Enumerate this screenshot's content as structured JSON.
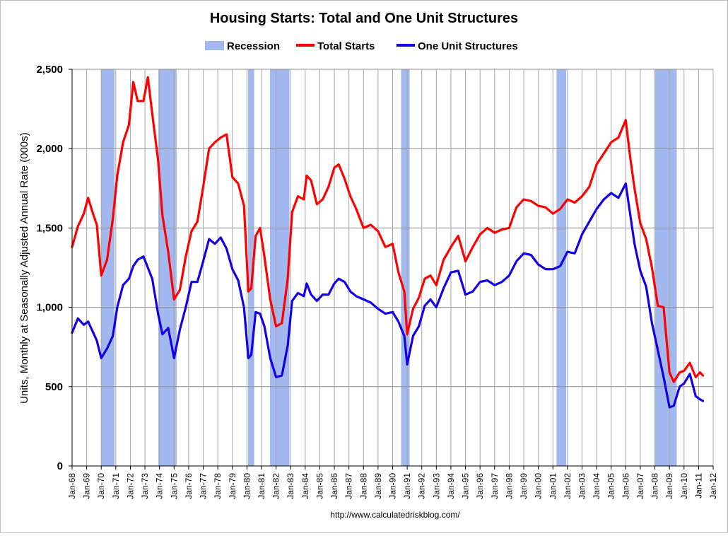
{
  "chart_data": {
    "type": "line",
    "title": "Housing Starts: Total and One Unit Structures",
    "ylabel": "Units, Monthly at Seasonally Adjusted Annual Rate (000s)",
    "xlabel": "",
    "source": "http://www.calculatedriskblog.com/",
    "xlim": [
      1968.0,
      2012.0
    ],
    "ylim": [
      0,
      2500
    ],
    "yticks": [
      0,
      500,
      1000,
      1500,
      2000,
      2500
    ],
    "ytick_labels": [
      "0",
      "500",
      "1,000",
      "1,500",
      "2,000",
      "2,500"
    ],
    "xtick_labels": [
      "Jan-68",
      "Jan-69",
      "Jan-70",
      "Jan-71",
      "Jan-72",
      "Jan-73",
      "Jan-74",
      "Jan-75",
      "Jan-76",
      "Jan-77",
      "Jan-78",
      "Jan-79",
      "Jan-80",
      "Jan-81",
      "Jan-82",
      "Jan-83",
      "Jan-84",
      "Jan-85",
      "Jan-86",
      "Jan-87",
      "Jan-88",
      "Jan-89",
      "Jan-90",
      "Jan-91",
      "Jan-92",
      "Jan-93",
      "Jan-94",
      "Jan-95",
      "Jan-96",
      "Jan-97",
      "Jan-98",
      "Jan-99",
      "Jan-00",
      "Jan-01",
      "Jan-02",
      "Jan-03",
      "Jan-04",
      "Jan-05",
      "Jan-06",
      "Jan-07",
      "Jan-08",
      "Jan-09",
      "Jan-10",
      "Jan-11",
      "Jan-12"
    ],
    "grid": true,
    "legend": {
      "position": "top",
      "entries": [
        "Recession",
        "Total Starts",
        "One Unit Structures"
      ]
    },
    "recessions": [
      {
        "name": "Recession",
        "start": 1970.0,
        "end": 1970.92
      },
      {
        "name": "Recession",
        "start": 1973.92,
        "end": 1975.17
      },
      {
        "name": "Recession",
        "start": 1980.08,
        "end": 1980.5
      },
      {
        "name": "Recession",
        "start": 1981.58,
        "end": 1982.92
      },
      {
        "name": "Recession",
        "start": 1990.58,
        "end": 1991.17
      },
      {
        "name": "Recession",
        "start": 2001.25,
        "end": 2001.92
      },
      {
        "name": "Recession",
        "start": 2008.0,
        "end": 2009.5
      }
    ],
    "series": [
      {
        "name": "Total Starts",
        "color": "#ff0000",
        "x": [
          1968.0,
          1968.4,
          1968.8,
          1969.1,
          1969.4,
          1969.7,
          1970.0,
          1970.4,
          1970.8,
          1971.1,
          1971.5,
          1971.9,
          1972.2,
          1972.5,
          1972.9,
          1973.2,
          1973.5,
          1973.9,
          1974.2,
          1974.6,
          1975.0,
          1975.4,
          1975.8,
          1976.2,
          1976.6,
          1977.0,
          1977.4,
          1977.8,
          1978.2,
          1978.6,
          1979.0,
          1979.4,
          1979.8,
          1980.1,
          1980.3,
          1980.6,
          1980.9,
          1981.2,
          1981.6,
          1982.0,
          1982.4,
          1982.8,
          1983.1,
          1983.5,
          1983.9,
          1984.1,
          1984.4,
          1984.8,
          1985.2,
          1985.6,
          1986.0,
          1986.3,
          1986.7,
          1987.1,
          1987.5,
          1988.0,
          1988.5,
          1989.0,
          1989.5,
          1990.0,
          1990.4,
          1990.8,
          1991.0,
          1991.4,
          1991.8,
          1992.2,
          1992.6,
          1993.0,
          1993.5,
          1994.0,
          1994.5,
          1995.0,
          1995.5,
          1996.0,
          1996.5,
          1997.0,
          1997.5,
          1998.0,
          1998.5,
          1999.0,
          1999.5,
          2000.0,
          2000.5,
          2001.0,
          2001.5,
          2002.0,
          2002.5,
          2003.0,
          2003.5,
          2004.0,
          2004.5,
          2005.0,
          2005.5,
          2006.0,
          2006.3,
          2006.6,
          2007.0,
          2007.4,
          2007.8,
          2008.2,
          2008.6,
          2009.0,
          2009.3,
          2009.7,
          2010.0,
          2010.4,
          2010.8,
          2011.1,
          2011.3
        ],
        "values": [
          1380,
          1510,
          1590,
          1690,
          1600,
          1520,
          1200,
          1300,
          1560,
          1830,
          2040,
          2150,
          2420,
          2300,
          2300,
          2450,
          2220,
          1930,
          1580,
          1350,
          1050,
          1110,
          1320,
          1480,
          1540,
          1760,
          2000,
          2040,
          2070,
          2090,
          1820,
          1780,
          1640,
          1100,
          1120,
          1450,
          1500,
          1320,
          1050,
          880,
          900,
          1180,
          1600,
          1700,
          1680,
          1830,
          1800,
          1650,
          1680,
          1760,
          1880,
          1900,
          1810,
          1700,
          1620,
          1500,
          1520,
          1480,
          1380,
          1400,
          1220,
          1100,
          830,
          990,
          1060,
          1180,
          1200,
          1140,
          1300,
          1380,
          1450,
          1290,
          1380,
          1460,
          1500,
          1470,
          1490,
          1500,
          1630,
          1680,
          1670,
          1640,
          1630,
          1590,
          1620,
          1680,
          1660,
          1700,
          1760,
          1900,
          1970,
          2040,
          2070,
          2180,
          1950,
          1750,
          1530,
          1430,
          1250,
          1010,
          1000,
          590,
          530,
          590,
          600,
          650,
          560,
          590,
          570
        ],
        "ytick_labels": []
      },
      {
        "name": "One Unit Structures",
        "color": "#1400e6",
        "x": [
          1968.0,
          1968.4,
          1968.8,
          1969.1,
          1969.4,
          1969.7,
          1970.0,
          1970.4,
          1970.8,
          1971.1,
          1971.5,
          1971.9,
          1972.2,
          1972.5,
          1972.9,
          1973.2,
          1973.5,
          1973.9,
          1974.2,
          1974.6,
          1975.0,
          1975.4,
          1975.8,
          1976.2,
          1976.6,
          1977.0,
          1977.4,
          1977.8,
          1978.2,
          1978.6,
          1979.0,
          1979.4,
          1979.8,
          1980.1,
          1980.3,
          1980.6,
          1980.9,
          1981.2,
          1981.6,
          1982.0,
          1982.4,
          1982.8,
          1983.1,
          1983.5,
          1983.9,
          1984.1,
          1984.4,
          1984.8,
          1985.2,
          1985.6,
          1986.0,
          1986.3,
          1986.7,
          1987.1,
          1987.5,
          1988.0,
          1988.5,
          1989.0,
          1989.5,
          1990.0,
          1990.4,
          1990.8,
          1991.0,
          1991.4,
          1991.8,
          1992.2,
          1992.6,
          1993.0,
          1993.5,
          1994.0,
          1994.5,
          1995.0,
          1995.5,
          1996.0,
          1996.5,
          1997.0,
          1997.5,
          1998.0,
          1998.5,
          1999.0,
          1999.5,
          2000.0,
          2000.5,
          2001.0,
          2001.5,
          2002.0,
          2002.5,
          2003.0,
          2003.5,
          2004.0,
          2004.5,
          2005.0,
          2005.5,
          2006.0,
          2006.3,
          2006.6,
          2007.0,
          2007.4,
          2007.8,
          2008.2,
          2008.6,
          2009.0,
          2009.3,
          2009.7,
          2010.0,
          2010.4,
          2010.8,
          2011.1,
          2011.3
        ],
        "values": [
          840,
          930,
          890,
          910,
          850,
          790,
          680,
          740,
          820,
          1000,
          1140,
          1180,
          1260,
          1300,
          1320,
          1250,
          1180,
          960,
          830,
          870,
          680,
          860,
          1000,
          1160,
          1160,
          1290,
          1430,
          1400,
          1440,
          1370,
          1240,
          1170,
          1000,
          680,
          700,
          970,
          960,
          880,
          680,
          560,
          570,
          760,
          1040,
          1090,
          1070,
          1150,
          1080,
          1040,
          1080,
          1080,
          1150,
          1180,
          1160,
          1100,
          1070,
          1050,
          1030,
          990,
          960,
          970,
          910,
          820,
          640,
          820,
          880,
          1010,
          1050,
          1000,
          1120,
          1220,
          1230,
          1080,
          1100,
          1160,
          1170,
          1140,
          1160,
          1200,
          1290,
          1340,
          1330,
          1270,
          1240,
          1240,
          1260,
          1350,
          1340,
          1460,
          1540,
          1620,
          1680,
          1720,
          1690,
          1780,
          1590,
          1400,
          1230,
          1130,
          900,
          730,
          560,
          370,
          380,
          500,
          520,
          580,
          440,
          420,
          410
        ],
        "ytick_labels": []
      }
    ]
  }
}
